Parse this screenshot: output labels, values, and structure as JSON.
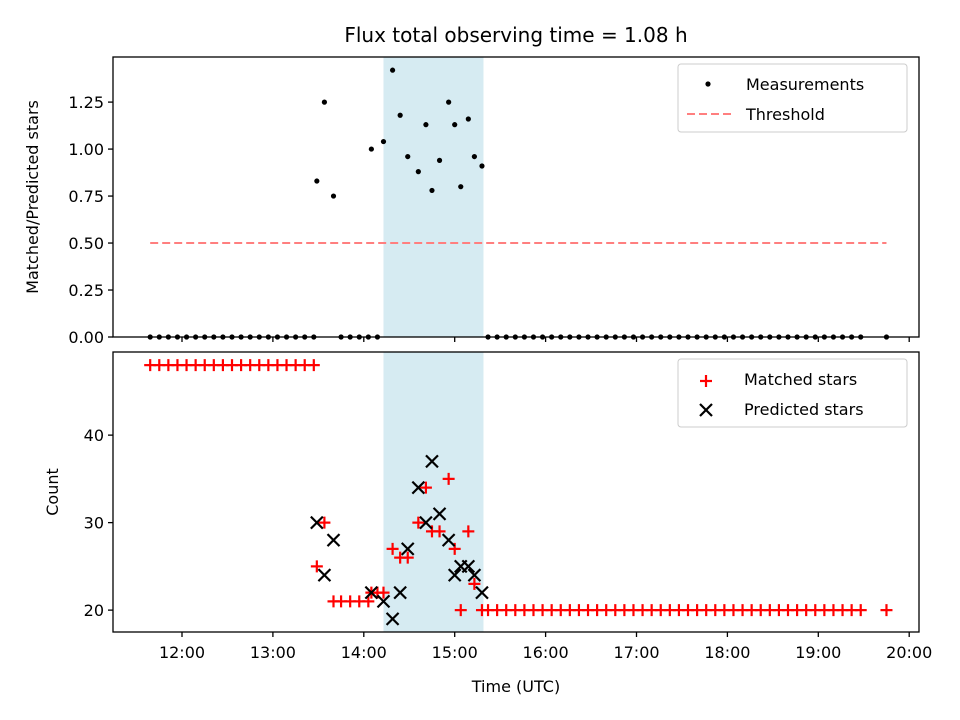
{
  "colors": {
    "measurements": "#000000",
    "threshold": "#ff7f7f",
    "matched": "#ff0000",
    "predicted": "#000000",
    "shade": "#add8e6"
  },
  "chart_data": [
    {
      "type": "scatter",
      "title": "Flux total observing time = 1.08 h",
      "xlabel": "",
      "ylabel": "Matched/Predicted stars",
      "ylim": [
        0.0,
        1.49
      ],
      "yticks": [
        "0.00",
        "0.25",
        "0.50",
        "0.75",
        "1.00",
        "1.25"
      ],
      "shaded_region": [
        "14:13",
        "15:19"
      ],
      "legend_position": "upper right",
      "legend": [
        "Measurements",
        "Threshold"
      ],
      "series": [
        {
          "name": "Measurements",
          "points": [
            [
              "11:39",
              0
            ],
            [
              "11:45",
              0
            ],
            [
              "11:51",
              0
            ],
            [
              "11:57",
              0
            ],
            [
              "12:03",
              0
            ],
            [
              "12:09",
              0
            ],
            [
              "12:15",
              0
            ],
            [
              "12:21",
              0
            ],
            [
              "12:27",
              0
            ],
            [
              "12:33",
              0
            ],
            [
              "12:39",
              0
            ],
            [
              "12:45",
              0
            ],
            [
              "12:51",
              0
            ],
            [
              "12:57",
              0
            ],
            [
              "13:03",
              0
            ],
            [
              "13:09",
              0
            ],
            [
              "13:15",
              0
            ],
            [
              "13:21",
              0
            ],
            [
              "13:27",
              0
            ],
            [
              "13:29",
              0.83
            ],
            [
              "13:34",
              1.25
            ],
            [
              "13:40",
              0.75
            ],
            [
              "13:45",
              0
            ],
            [
              "13:51",
              0
            ],
            [
              "13:57",
              0
            ],
            [
              "14:03",
              0
            ],
            [
              "14:05",
              1.0
            ],
            [
              "14:09",
              0
            ],
            [
              "14:13",
              1.04
            ],
            [
              "14:19",
              1.42
            ],
            [
              "14:24",
              1.18
            ],
            [
              "14:29",
              0.96
            ],
            [
              "14:36",
              0.88
            ],
            [
              "14:41",
              1.13
            ],
            [
              "14:45",
              0.78
            ],
            [
              "14:50",
              0.94
            ],
            [
              "14:56",
              1.25
            ],
            [
              "15:00",
              1.13
            ],
            [
              "15:04",
              0.8
            ],
            [
              "15:09",
              1.16
            ],
            [
              "15:13",
              0.96
            ],
            [
              "15:18",
              0.91
            ],
            [
              "15:22",
              0
            ],
            [
              "15:28",
              0
            ],
            [
              "15:34",
              0
            ],
            [
              "15:40",
              0
            ],
            [
              "15:46",
              0
            ],
            [
              "15:52",
              0
            ],
            [
              "15:58",
              0
            ],
            [
              "16:04",
              0
            ],
            [
              "16:10",
              0
            ],
            [
              "16:16",
              0
            ],
            [
              "16:22",
              0
            ],
            [
              "16:28",
              0
            ],
            [
              "16:34",
              0
            ],
            [
              "16:40",
              0
            ],
            [
              "16:46",
              0
            ],
            [
              "16:52",
              0
            ],
            [
              "16:58",
              0
            ],
            [
              "17:04",
              0
            ],
            [
              "17:10",
              0
            ],
            [
              "17:16",
              0
            ],
            [
              "17:22",
              0
            ],
            [
              "17:28",
              0
            ],
            [
              "17:34",
              0
            ],
            [
              "17:40",
              0
            ],
            [
              "17:46",
              0
            ],
            [
              "17:52",
              0
            ],
            [
              "17:58",
              0
            ],
            [
              "18:04",
              0
            ],
            [
              "18:10",
              0
            ],
            [
              "18:16",
              0
            ],
            [
              "18:22",
              0
            ],
            [
              "18:28",
              0
            ],
            [
              "18:34",
              0
            ],
            [
              "18:40",
              0
            ],
            [
              "18:46",
              0
            ],
            [
              "18:52",
              0
            ],
            [
              "18:58",
              0
            ],
            [
              "19:04",
              0
            ],
            [
              "19:10",
              0
            ],
            [
              "19:16",
              0
            ],
            [
              "19:22",
              0
            ],
            [
              "19:28",
              0
            ],
            [
              "19:45",
              0
            ]
          ]
        },
        {
          "name": "Threshold",
          "x_range": [
            "11:39",
            "19:45"
          ],
          "value": 0.5
        }
      ]
    },
    {
      "type": "scatter",
      "title": "",
      "xlabel": "Time (UTC)",
      "ylabel": "Count",
      "ylim": [
        17.5,
        49.5
      ],
      "yticks": [
        "20",
        "30",
        "40"
      ],
      "xticks": [
        "12:00",
        "13:00",
        "14:00",
        "15:00",
        "16:00",
        "17:00",
        "18:00",
        "19:00",
        "20:00"
      ],
      "shaded_region": [
        "14:13",
        "15:19"
      ],
      "legend_position": "upper right",
      "legend": [
        "Matched stars",
        "Predicted stars"
      ],
      "series": [
        {
          "name": "Matched stars",
          "points": [
            [
              "11:39",
              48
            ],
            [
              "11:45",
              48
            ],
            [
              "11:51",
              48
            ],
            [
              "11:57",
              48
            ],
            [
              "12:03",
              48
            ],
            [
              "12:09",
              48
            ],
            [
              "12:15",
              48
            ],
            [
              "12:21",
              48
            ],
            [
              "12:27",
              48
            ],
            [
              "12:33",
              48
            ],
            [
              "12:39",
              48
            ],
            [
              "12:45",
              48
            ],
            [
              "12:51",
              48
            ],
            [
              "12:57",
              48
            ],
            [
              "13:03",
              48
            ],
            [
              "13:09",
              48
            ],
            [
              "13:15",
              48
            ],
            [
              "13:21",
              48
            ],
            [
              "13:27",
              48
            ],
            [
              "13:29",
              25
            ],
            [
              "13:34",
              30
            ],
            [
              "13:40",
              21
            ],
            [
              "13:45",
              21
            ],
            [
              "13:51",
              21
            ],
            [
              "13:57",
              21
            ],
            [
              "14:03",
              21
            ],
            [
              "14:05",
              22
            ],
            [
              "14:09",
              22
            ],
            [
              "14:13",
              22
            ],
            [
              "14:19",
              27
            ],
            [
              "14:24",
              26
            ],
            [
              "14:29",
              26
            ],
            [
              "14:36",
              30
            ],
            [
              "14:41",
              34
            ],
            [
              "14:45",
              29
            ],
            [
              "14:50",
              29
            ],
            [
              "14:56",
              35
            ],
            [
              "15:00",
              27
            ],
            [
              "15:04",
              20
            ],
            [
              "15:09",
              29
            ],
            [
              "15:13",
              23
            ],
            [
              "15:18",
              20
            ],
            [
              "15:22",
              20
            ],
            [
              "15:28",
              20
            ],
            [
              "15:34",
              20
            ],
            [
              "15:40",
              20
            ],
            [
              "15:46",
              20
            ],
            [
              "15:52",
              20
            ],
            [
              "15:58",
              20
            ],
            [
              "16:04",
              20
            ],
            [
              "16:10",
              20
            ],
            [
              "16:16",
              20
            ],
            [
              "16:22",
              20
            ],
            [
              "16:28",
              20
            ],
            [
              "16:34",
              20
            ],
            [
              "16:40",
              20
            ],
            [
              "16:46",
              20
            ],
            [
              "16:52",
              20
            ],
            [
              "16:58",
              20
            ],
            [
              "17:04",
              20
            ],
            [
              "17:10",
              20
            ],
            [
              "17:16",
              20
            ],
            [
              "17:22",
              20
            ],
            [
              "17:28",
              20
            ],
            [
              "17:34",
              20
            ],
            [
              "17:40",
              20
            ],
            [
              "17:46",
              20
            ],
            [
              "17:52",
              20
            ],
            [
              "17:58",
              20
            ],
            [
              "18:04",
              20
            ],
            [
              "18:10",
              20
            ],
            [
              "18:16",
              20
            ],
            [
              "18:22",
              20
            ],
            [
              "18:28",
              20
            ],
            [
              "18:34",
              20
            ],
            [
              "18:40",
              20
            ],
            [
              "18:46",
              20
            ],
            [
              "18:52",
              20
            ],
            [
              "18:58",
              20
            ],
            [
              "19:04",
              20
            ],
            [
              "19:10",
              20
            ],
            [
              "19:16",
              20
            ],
            [
              "19:22",
              20
            ],
            [
              "19:28",
              20
            ],
            [
              "19:45",
              20
            ]
          ]
        },
        {
          "name": "Predicted stars",
          "points": [
            [
              "13:29",
              30
            ],
            [
              "13:34",
              24
            ],
            [
              "13:40",
              28
            ],
            [
              "14:05",
              22
            ],
            [
              "14:13",
              21
            ],
            [
              "14:19",
              19
            ],
            [
              "14:24",
              22
            ],
            [
              "14:29",
              27
            ],
            [
              "14:36",
              34
            ],
            [
              "14:41",
              30
            ],
            [
              "14:45",
              37
            ],
            [
              "14:50",
              31
            ],
            [
              "14:56",
              28
            ],
            [
              "15:00",
              24
            ],
            [
              "15:04",
              25
            ],
            [
              "15:09",
              25
            ],
            [
              "15:13",
              24
            ],
            [
              "15:18",
              22
            ]
          ]
        }
      ]
    }
  ]
}
